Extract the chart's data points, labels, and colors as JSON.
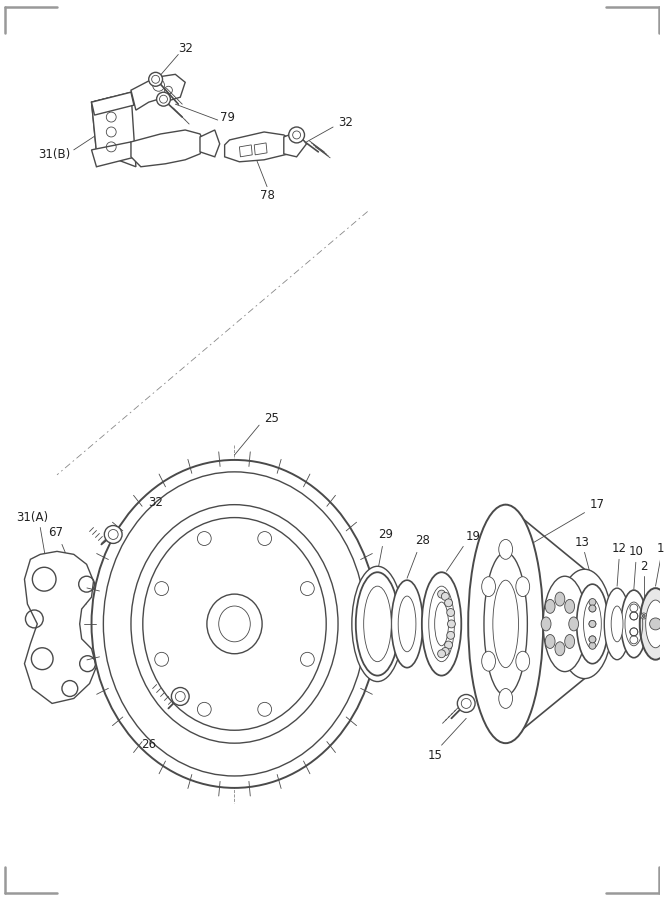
{
  "bg_color": "#ffffff",
  "lc": "#4a4a4a",
  "lw": 1.0,
  "tlw": 0.6,
  "fig_w": 6.67,
  "fig_h": 9.0,
  "border": "#999999"
}
